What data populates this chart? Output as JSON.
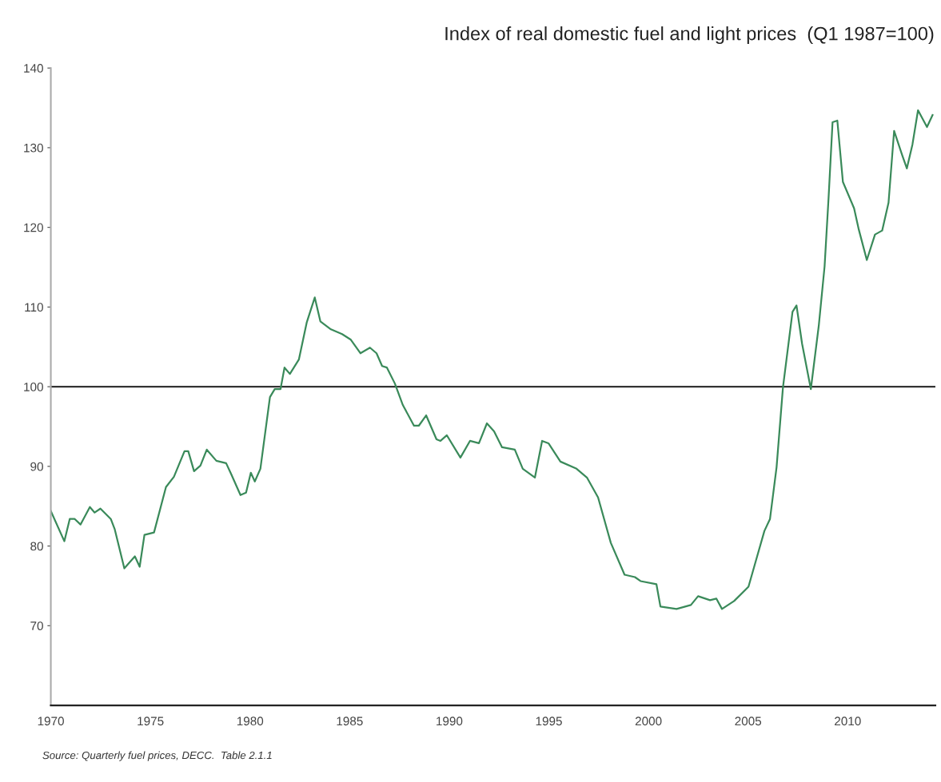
{
  "chart_data": {
    "type": "line",
    "title": "Index of real domestic fuel and light prices  (Q1 1987=100)",
    "annotations": [
      "Source: Quarterly fuel prices, DECC.  Table 2.1.1"
    ],
    "xlim": [
      1970,
      2014.4
    ],
    "xticks": [
      1970,
      1975,
      1980,
      1985,
      1990,
      1995,
      2000,
      2005,
      2010
    ],
    "ylim": [
      60,
      140
    ],
    "yticks": [
      70,
      80,
      90,
      100,
      110,
      120,
      130,
      140
    ],
    "grid": false,
    "marker": "none",
    "line_style": "solid",
    "ref_lines": [
      {
        "axis": "y",
        "value": 100,
        "color": "#333333"
      }
    ],
    "series": [
      {
        "color": "#3a8a5a",
        "x": [
          1970.0,
          1970.68,
          1970.95,
          1971.2,
          1971.49,
          1971.96,
          1972.2,
          1972.49,
          1973.01,
          1973.21,
          1973.69,
          1974.22,
          1974.46,
          1974.7,
          1975.18,
          1975.78,
          1976.18,
          1976.71,
          1976.9,
          1977.19,
          1977.51,
          1977.83,
          1978.31,
          1978.8,
          1979.04,
          1979.52,
          1979.8,
          1980.04,
          1980.24,
          1980.52,
          1981.0,
          1981.24,
          1981.53,
          1981.73,
          1982.0,
          1982.45,
          1982.85,
          1983.25,
          1983.53,
          1984.06,
          1984.62,
          1985.06,
          1985.54,
          1986.02,
          1986.35,
          1986.63,
          1986.87,
          1987.27,
          1987.67,
          1988.23,
          1988.47,
          1988.84,
          1989.36,
          1989.56,
          1989.88,
          1990.56,
          1991.04,
          1991.49,
          1991.89,
          1992.25,
          1992.65,
          1993.29,
          1993.69,
          1994.3,
          1994.66,
          1994.98,
          1995.58,
          1996.39,
          1996.91,
          1997.47,
          1998.11,
          1998.8,
          1999.32,
          1999.6,
          2000.4,
          2000.6,
          2001.41,
          2002.13,
          2002.49,
          2003.09,
          2003.41,
          2003.69,
          2004.3,
          2005.02,
          2005.42,
          2005.82,
          2006.1,
          2006.43,
          2006.75,
          2007.23,
          2007.43,
          2007.71,
          2008.15,
          2008.55,
          2008.84,
          2009.04,
          2009.24,
          2009.48,
          2009.76,
          2010.32,
          2010.56,
          2010.96,
          2011.37,
          2011.73,
          2012.05,
          2012.33,
          2012.73,
          2012.97,
          2013.25,
          2013.53,
          2013.98,
          2014.26
        ],
        "values": [
          84.4,
          80.6,
          83.4,
          83.4,
          82.7,
          84.9,
          84.2,
          84.7,
          83.4,
          82.1,
          77.2,
          78.7,
          77.4,
          81.4,
          81.7,
          87.4,
          88.7,
          91.9,
          91.9,
          89.4,
          90.1,
          92.1,
          90.7,
          90.4,
          89.1,
          86.4,
          86.7,
          89.2,
          88.1,
          89.7,
          98.7,
          99.7,
          99.7,
          102.4,
          101.6,
          103.4,
          108.1,
          111.2,
          108.2,
          107.2,
          106.6,
          105.9,
          104.2,
          104.9,
          104.2,
          102.6,
          102.4,
          100.4,
          97.7,
          95.1,
          95.1,
          96.4,
          93.4,
          93.2,
          93.9,
          91.1,
          93.2,
          92.9,
          95.4,
          94.4,
          92.4,
          92.1,
          89.7,
          88.6,
          93.2,
          92.9,
          90.6,
          89.7,
          88.6,
          86.1,
          80.4,
          76.4,
          76.1,
          75.6,
          75.2,
          72.4,
          72.1,
          72.6,
          73.7,
          73.2,
          73.4,
          72.1,
          73.1,
          74.9,
          78.4,
          81.9,
          83.4,
          89.9,
          99.9,
          109.4,
          110.2,
          105.4,
          99.7,
          107.7,
          115.1,
          123.7,
          133.2,
          133.4,
          125.7,
          122.4,
          119.7,
          115.9,
          119.1,
          119.6,
          123.1,
          132.1,
          129.1,
          127.4,
          130.4,
          134.7,
          132.6,
          134.1
        ]
      }
    ]
  }
}
